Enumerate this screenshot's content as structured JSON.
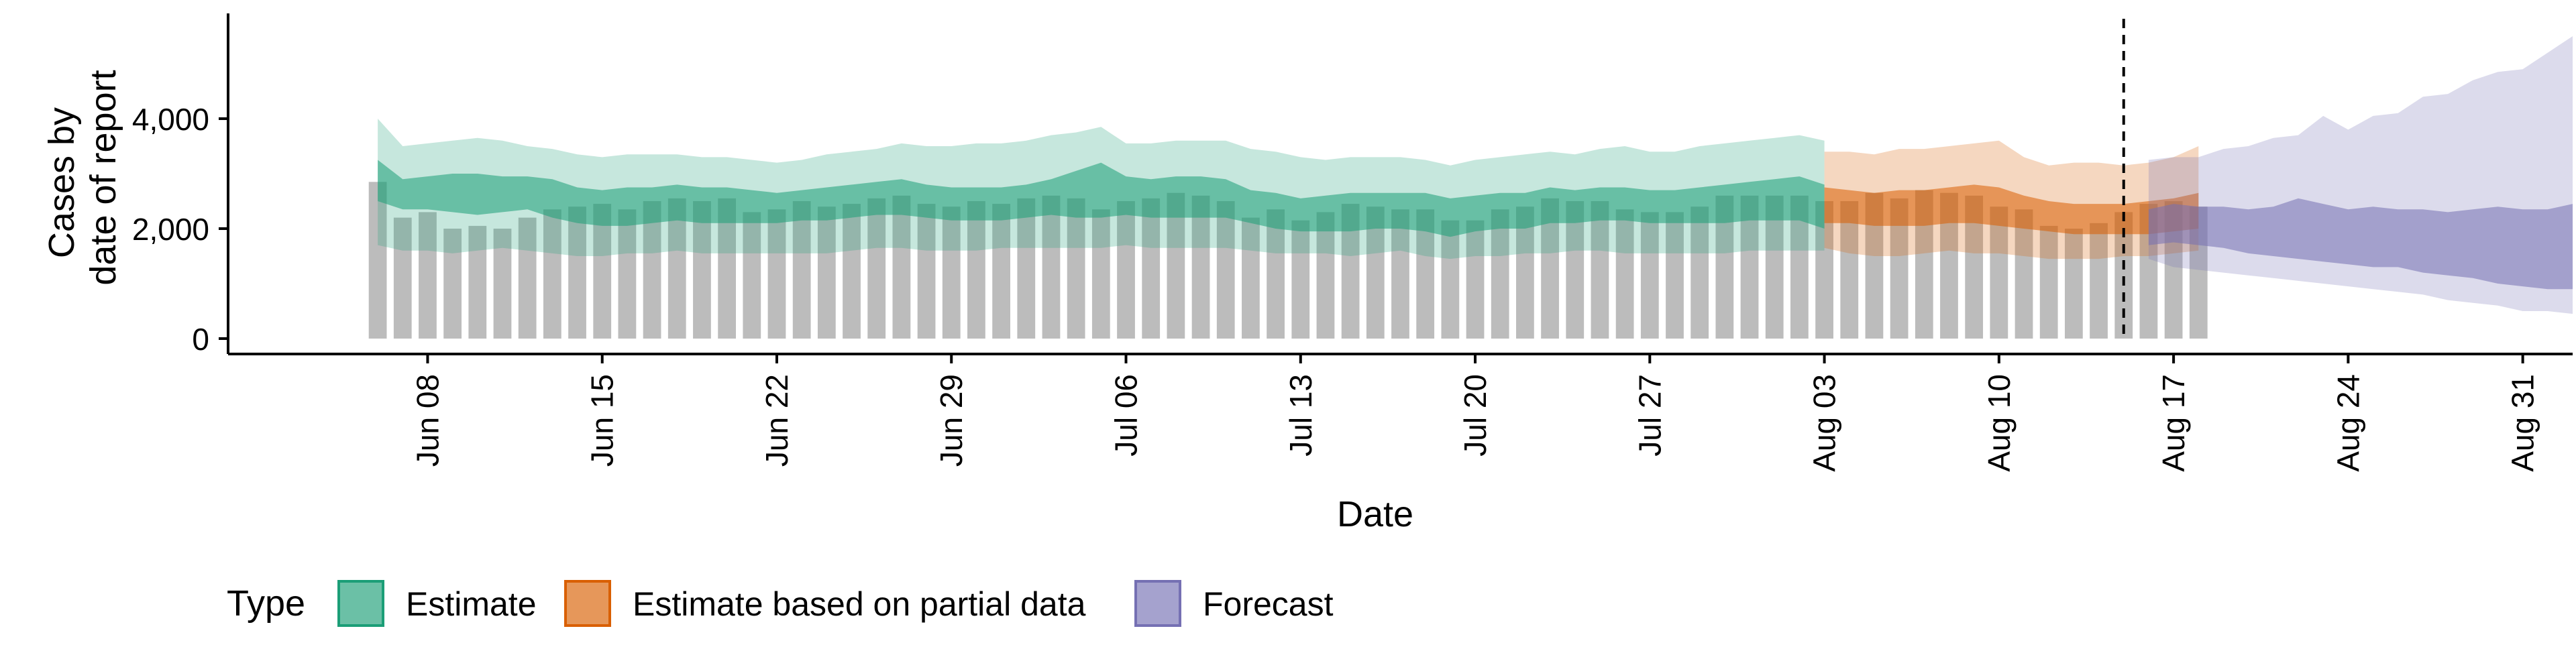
{
  "chart_data": {
    "type": "area",
    "xlabel": "Date",
    "ylabel_line1": "Cases by",
    "ylabel_line2": "date of report",
    "ylim": [
      0,
      6000
    ],
    "y_ticks": [
      {
        "value": 0,
        "label": "0"
      },
      {
        "value": 2000,
        "label": "2,000"
      },
      {
        "value": 4000,
        "label": "4,000"
      }
    ],
    "x_ticks": [
      {
        "date": "2020-06-08",
        "label": "Jun 08"
      },
      {
        "date": "2020-06-15",
        "label": "Jun 15"
      },
      {
        "date": "2020-06-22",
        "label": "Jun 22"
      },
      {
        "date": "2020-06-29",
        "label": "Jun 29"
      },
      {
        "date": "2020-07-06",
        "label": "Jul 06"
      },
      {
        "date": "2020-07-13",
        "label": "Jul 13"
      },
      {
        "date": "2020-07-20",
        "label": "Jul 20"
      },
      {
        "date": "2020-07-27",
        "label": "Jul 27"
      },
      {
        "date": "2020-08-03",
        "label": "Aug 03"
      },
      {
        "date": "2020-08-10",
        "label": "Aug 10"
      },
      {
        "date": "2020-08-17",
        "label": "Aug 17"
      },
      {
        "date": "2020-08-24",
        "label": "Aug 24"
      },
      {
        "date": "2020-08-31",
        "label": "Aug 31"
      }
    ],
    "x_range": [
      "2020-05-31",
      "2020-09-02"
    ],
    "report_cutoff": "2020-08-15",
    "grid": false,
    "legend_position": "bottom-left",
    "legend_title": "Type",
    "colors": {
      "bars": "#a0a0a0",
      "Estimate": "#1b9e77",
      "Estimate based on partial data": "#d95f02",
      "Forecast": "#7570b3"
    },
    "reported_cases": {
      "start_date": "2020-06-06",
      "values": [
        2850,
        2200,
        2300,
        2000,
        2050,
        2000,
        2200,
        2350,
        2400,
        2450,
        2350,
        2500,
        2550,
        2500,
        2550,
        2300,
        2350,
        2500,
        2400,
        2450,
        2550,
        2600,
        2450,
        2400,
        2500,
        2450,
        2550,
        2600,
        2550,
        2350,
        2500,
        2550,
        2650,
        2600,
        2500,
        2200,
        2350,
        2150,
        2300,
        2450,
        2400,
        2350,
        2350,
        2150,
        2150,
        2350,
        2400,
        2550,
        2500,
        2500,
        2350,
        2300,
        2300,
        2400,
        2600,
        2600,
        2600,
        2600,
        2500,
        2500,
        2650,
        2550,
        2700,
        2650,
        2600,
        2400,
        2350,
        2050,
        2000,
        2100,
        2300,
        2450,
        2500,
        2400
      ]
    },
    "series": [
      {
        "name": "Estimate",
        "start_date": "2020-06-06",
        "lower90": [
          1700,
          1600,
          1600,
          1550,
          1600,
          1650,
          1600,
          1550,
          1500,
          1500,
          1550,
          1550,
          1600,
          1550,
          1550,
          1550,
          1550,
          1550,
          1550,
          1600,
          1650,
          1650,
          1600,
          1600,
          1600,
          1650,
          1650,
          1650,
          1650,
          1650,
          1700,
          1650,
          1650,
          1650,
          1650,
          1600,
          1550,
          1550,
          1550,
          1500,
          1550,
          1600,
          1500,
          1450,
          1500,
          1500,
          1550,
          1550,
          1600,
          1600,
          1550,
          1550,
          1550,
          1550,
          1550,
          1600,
          1600,
          1600,
          1600
        ],
        "lower50": [
          2500,
          2350,
          2350,
          2300,
          2250,
          2300,
          2350,
          2200,
          2100,
          2050,
          2050,
          2100,
          2150,
          2100,
          2100,
          2100,
          2100,
          2150,
          2150,
          2200,
          2250,
          2250,
          2200,
          2150,
          2150,
          2150,
          2200,
          2250,
          2200,
          2200,
          2250,
          2200,
          2200,
          2200,
          2200,
          2100,
          2000,
          1950,
          1950,
          1950,
          2000,
          2000,
          1950,
          1850,
          1950,
          2000,
          2000,
          2100,
          2100,
          2150,
          2150,
          2100,
          2100,
          2100,
          2100,
          2150,
          2150,
          2150,
          2000
        ],
        "upper50": [
          3250,
          2900,
          2950,
          3000,
          3000,
          2950,
          2950,
          2900,
          2750,
          2700,
          2750,
          2750,
          2800,
          2750,
          2750,
          2700,
          2650,
          2700,
          2750,
          2800,
          2850,
          2900,
          2800,
          2750,
          2750,
          2750,
          2800,
          2900,
          3050,
          3200,
          2950,
          2900,
          2950,
          2950,
          2900,
          2700,
          2650,
          2550,
          2600,
          2650,
          2650,
          2650,
          2650,
          2550,
          2600,
          2650,
          2650,
          2750,
          2700,
          2750,
          2750,
          2700,
          2700,
          2750,
          2800,
          2850,
          2900,
          2950,
          2800
        ],
        "upper90": [
          4000,
          3500,
          3550,
          3600,
          3650,
          3600,
          3500,
          3450,
          3350,
          3300,
          3350,
          3350,
          3350,
          3300,
          3300,
          3250,
          3200,
          3250,
          3350,
          3400,
          3450,
          3550,
          3500,
          3500,
          3550,
          3550,
          3600,
          3700,
          3750,
          3850,
          3550,
          3550,
          3600,
          3600,
          3600,
          3450,
          3400,
          3300,
          3250,
          3300,
          3300,
          3300,
          3250,
          3150,
          3250,
          3300,
          3350,
          3400,
          3350,
          3450,
          3500,
          3400,
          3400,
          3500,
          3550,
          3600,
          3650,
          3700,
          3600
        ]
      },
      {
        "name": "Estimate based on partial data",
        "start_date": "2020-08-03",
        "lower90": [
          1650,
          1550,
          1500,
          1500,
          1550,
          1600,
          1550,
          1550,
          1500,
          1450,
          1450,
          1450,
          1500,
          1500,
          1550,
          1600
        ],
        "lower50": [
          2100,
          2100,
          2050,
          2050,
          2050,
          2100,
          2100,
          2050,
          2000,
          1950,
          1900,
          1900,
          1900,
          1900,
          1950,
          2000
        ],
        "upper50": [
          2750,
          2700,
          2650,
          2700,
          2700,
          2750,
          2800,
          2750,
          2600,
          2500,
          2450,
          2450,
          2450,
          2500,
          2550,
          2650
        ],
        "upper90": [
          3400,
          3400,
          3350,
          3450,
          3450,
          3500,
          3550,
          3600,
          3300,
          3150,
          3200,
          3200,
          3150,
          3200,
          3300,
          3500
        ]
      },
      {
        "name": "Forecast",
        "start_date": "2020-08-16",
        "lower90": [
          1450,
          1300,
          1250,
          1200,
          1150,
          1100,
          1050,
          1000,
          950,
          900,
          850,
          800,
          700,
          650,
          600,
          500,
          500,
          450
        ],
        "lower50": [
          1700,
          1750,
          1700,
          1650,
          1550,
          1500,
          1450,
          1400,
          1350,
          1300,
          1300,
          1200,
          1150,
          1100,
          1000,
          950,
          900,
          900
        ],
        "upper50": [
          2350,
          2450,
          2400,
          2400,
          2350,
          2400,
          2550,
          2450,
          2350,
          2400,
          2350,
          2350,
          2300,
          2350,
          2400,
          2350,
          2350,
          2450
        ],
        "upper90": [
          3250,
          3300,
          3300,
          3450,
          3500,
          3650,
          3700,
          4050,
          3800,
          4050,
          4100,
          4400,
          4450,
          4700,
          4850,
          4900,
          5200,
          5500
        ]
      }
    ]
  }
}
